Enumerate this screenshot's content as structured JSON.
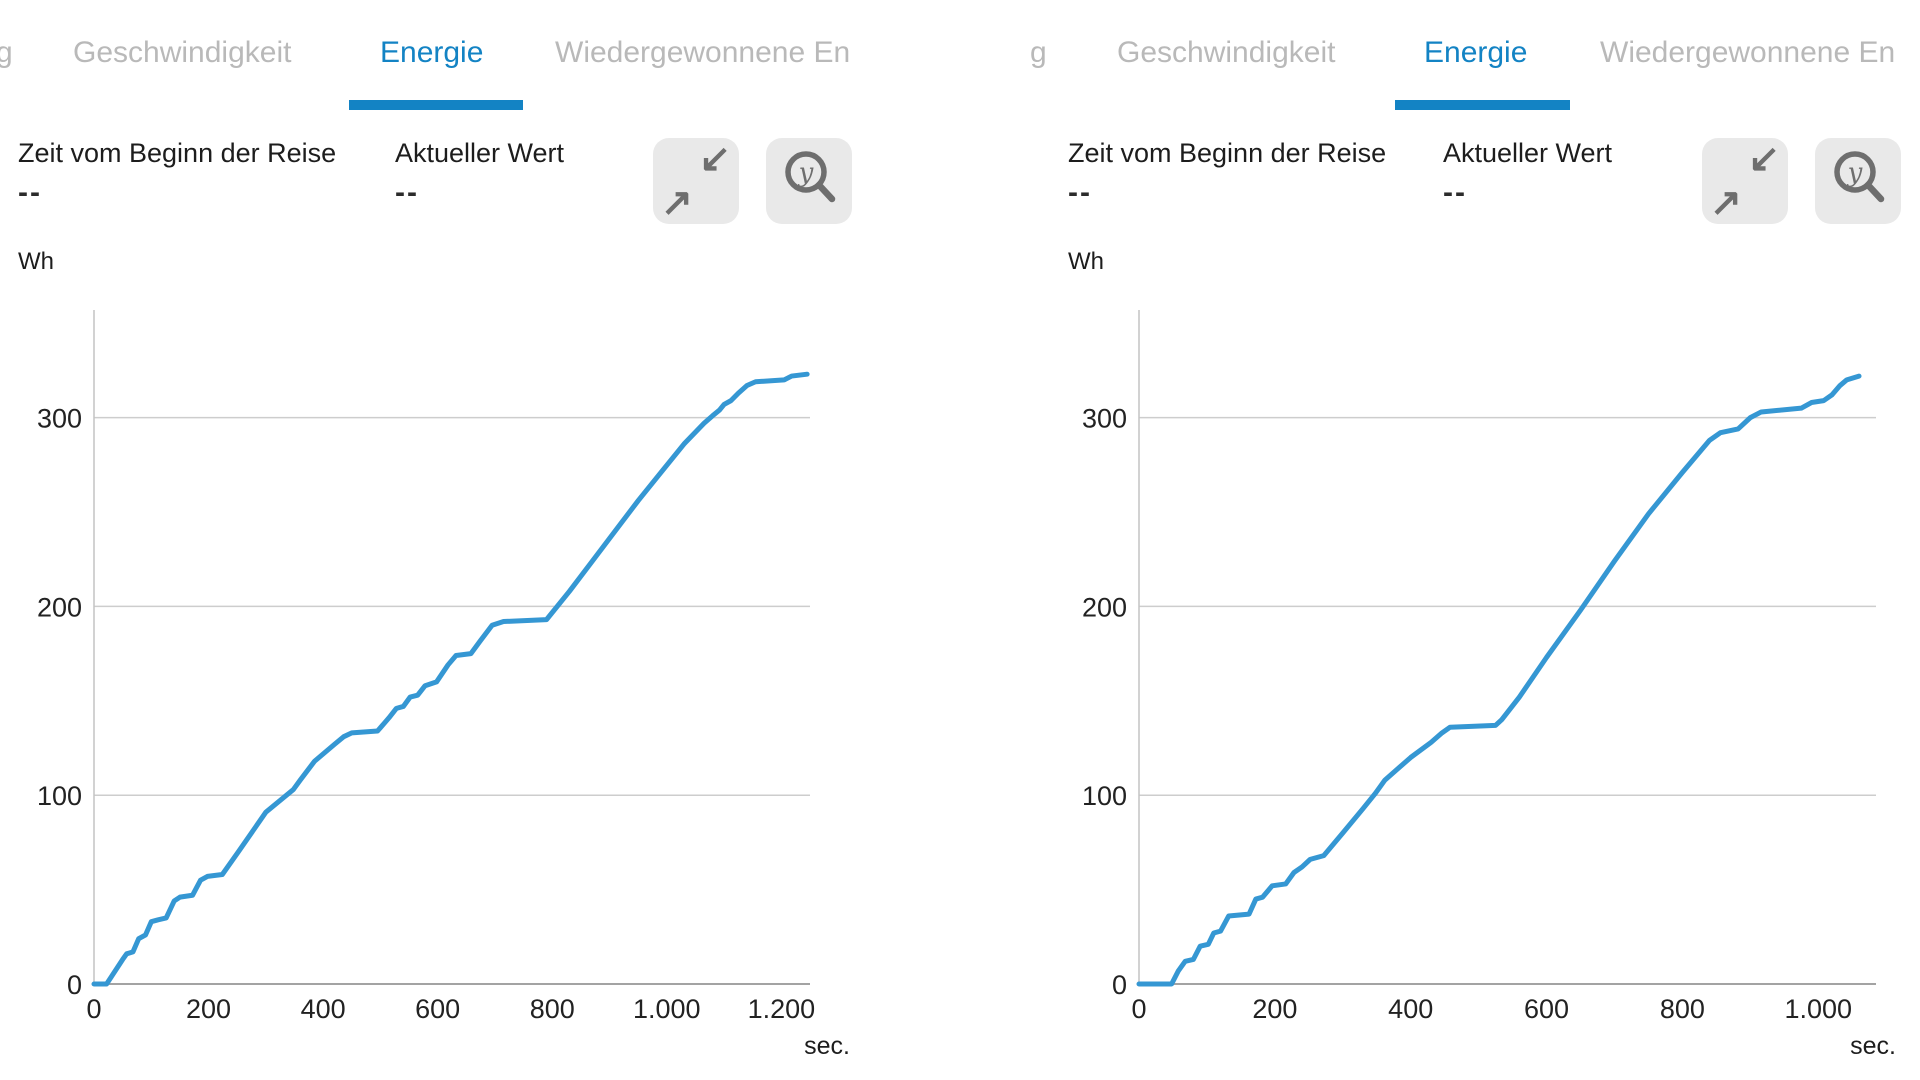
{
  "colors": {
    "accent": "#1383c4",
    "line": "#3597d3",
    "inactive_tab": "#b9b9b9",
    "button_bg": "#e9e9e9",
    "icon_gray": "#6e6e6e"
  },
  "icons": {
    "collapse_arrow_down_left": "↙",
    "collapse_arrow_up_right": "↗"
  },
  "panels": [
    {
      "tabs": {
        "cut": "g",
        "prev": "Geschwindigkeit",
        "active": "Energie",
        "next": "Wiedergewonnene En"
      },
      "stats": [
        {
          "label": "Zeit vom Beginn der Reise",
          "value": "--"
        },
        {
          "label": "Aktueller Wert",
          "value": "--"
        }
      ],
      "zoom_button_letter": "y",
      "y_unit": "Wh",
      "x_unit": "sec."
    },
    {
      "tabs": {
        "cut": "g",
        "prev": "Geschwindigkeit",
        "active": "Energie",
        "next": "Wiedergewonnene En"
      },
      "stats": [
        {
          "label": "Zeit vom Beginn der Reise",
          "value": "--"
        },
        {
          "label": "Aktueller Wert",
          "value": "--"
        }
      ],
      "zoom_button_letter": "y",
      "y_unit": "Wh",
      "x_unit": "sec."
    }
  ],
  "chart_data": [
    {
      "type": "line",
      "title": "Energie",
      "xlabel": "sec.",
      "ylabel": "Wh",
      "xlim": [
        0,
        1250
      ],
      "ylim": [
        0,
        357
      ],
      "grid": true,
      "legend": "none",
      "line_color": "#3597d3",
      "xticks": [
        0,
        200,
        400,
        600,
        800,
        1000,
        1200
      ],
      "xtick_labels": [
        "0",
        "200",
        "400",
        "600",
        "800",
        "1.000",
        "1.200"
      ],
      "yticks": [
        0,
        100,
        200,
        300
      ],
      "ytick_labels": [
        "0",
        "100",
        "200",
        "300"
      ],
      "series": [
        {
          "name": "Energie (Wh)",
          "points": [
            [
              0,
              0
            ],
            [
              22,
              0
            ],
            [
              35,
              6
            ],
            [
              50,
              13
            ],
            [
              57,
              16
            ],
            [
              68,
              17
            ],
            [
              78,
              24
            ],
            [
              90,
              26
            ],
            [
              100,
              33
            ],
            [
              112,
              34
            ],
            [
              126,
              35
            ],
            [
              140,
              44
            ],
            [
              150,
              46
            ],
            [
              172,
              47
            ],
            [
              186,
              55
            ],
            [
              198,
              57
            ],
            [
              224,
              58
            ],
            [
              252,
              70
            ],
            [
              300,
              91
            ],
            [
              348,
              103
            ],
            [
              360,
              108
            ],
            [
              385,
              118
            ],
            [
              420,
              127
            ],
            [
              436,
              131
            ],
            [
              450,
              133
            ],
            [
              495,
              134
            ],
            [
              515,
              141
            ],
            [
              528,
              146
            ],
            [
              540,
              147
            ],
            [
              552,
              152
            ],
            [
              565,
              153
            ],
            [
              578,
              158
            ],
            [
              598,
              160
            ],
            [
              618,
              169
            ],
            [
              632,
              174
            ],
            [
              658,
              175
            ],
            [
              675,
              182
            ],
            [
              695,
              190
            ],
            [
              715,
              192
            ],
            [
              790,
              193
            ],
            [
              830,
              208
            ],
            [
              870,
              224
            ],
            [
              910,
              240
            ],
            [
              950,
              256
            ],
            [
              990,
              271
            ],
            [
              1030,
              286
            ],
            [
              1065,
              297
            ],
            [
              1080,
              301
            ],
            [
              1092,
              304
            ],
            [
              1100,
              307
            ],
            [
              1112,
              309
            ],
            [
              1125,
              313
            ],
            [
              1140,
              317
            ],
            [
              1155,
              319
            ],
            [
              1205,
              320
            ],
            [
              1218,
              322
            ],
            [
              1245,
              323
            ]
          ]
        }
      ]
    },
    {
      "type": "line",
      "title": "Energie",
      "xlabel": "sec.",
      "ylabel": "Wh",
      "xlim": [
        0,
        1085
      ],
      "ylim": [
        0,
        357
      ],
      "grid": true,
      "legend": "none",
      "line_color": "#3597d3",
      "xticks": [
        0,
        200,
        400,
        600,
        800,
        1000
      ],
      "xtick_labels": [
        "0",
        "200",
        "400",
        "600",
        "800",
        "1.000"
      ],
      "yticks": [
        0,
        100,
        200,
        300
      ],
      "ytick_labels": [
        "0",
        "100",
        "200",
        "300"
      ],
      "series": [
        {
          "name": "Energie (Wh)",
          "points": [
            [
              0,
              0
            ],
            [
              48,
              0
            ],
            [
              58,
              7
            ],
            [
              68,
              12
            ],
            [
              80,
              13
            ],
            [
              90,
              20
            ],
            [
              102,
              21
            ],
            [
              110,
              27
            ],
            [
              120,
              28
            ],
            [
              132,
              36
            ],
            [
              162,
              37
            ],
            [
              172,
              45
            ],
            [
              182,
              46
            ],
            [
              196,
              52
            ],
            [
              216,
              53
            ],
            [
              228,
              59
            ],
            [
              240,
              62
            ],
            [
              252,
              66
            ],
            [
              272,
              68
            ],
            [
              300,
              80
            ],
            [
              330,
              93
            ],
            [
              348,
              101
            ],
            [
              362,
              108
            ],
            [
              400,
              120
            ],
            [
              430,
              128
            ],
            [
              446,
              133
            ],
            [
              458,
              136
            ],
            [
              525,
              137
            ],
            [
              534,
              140
            ],
            [
              560,
              152
            ],
            [
              600,
              173
            ],
            [
              650,
              198
            ],
            [
              700,
              224
            ],
            [
              750,
              249
            ],
            [
              800,
              271
            ],
            [
              840,
              288
            ],
            [
              856,
              292
            ],
            [
              882,
              294
            ],
            [
              900,
              300
            ],
            [
              916,
              303
            ],
            [
              975,
              305
            ],
            [
              990,
              308
            ],
            [
              1008,
              309
            ],
            [
              1020,
              312
            ],
            [
              1032,
              317
            ],
            [
              1042,
              320
            ],
            [
              1060,
              322
            ]
          ]
        }
      ]
    }
  ]
}
